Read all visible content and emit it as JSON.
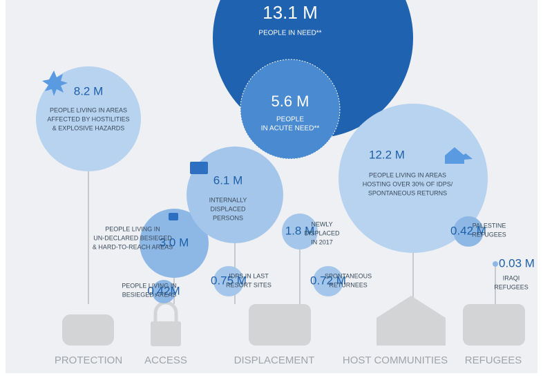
{
  "need": {
    "value": "13.1 M",
    "label": "PEOPLE IN NEED**"
  },
  "acute": {
    "value": "5.6 M",
    "lines": [
      "PEOPLE",
      "IN ACUTE NEED**"
    ]
  },
  "bubbles": [
    {
      "value": "8.2 M",
      "lines": [
        "PEOPLE LIVING IN AREAS",
        "AFFECTED BY HOSTILITIES",
        "& EXPLOSIVE HAZARDS"
      ]
    },
    {
      "value": "3.0 M",
      "lines": [
        "PEOPLE LIVING IN",
        "UN-DECLARED BESIEGED",
        "& HARD-TO-REACH AREAS"
      ]
    },
    {
      "value": "0.42M",
      "lines": [
        "PEOPLE LIVING IN",
        "BESIEGED AREAS"
      ]
    },
    {
      "value": "6.1 M",
      "lines": [
        "INTERNALLY",
        "DISPLACED",
        "PERSONS"
      ]
    },
    {
      "value": "0.75 M",
      "lines": [
        "IDPS IN LAST",
        "RESORT SITES"
      ]
    },
    {
      "value": "1.8 M",
      "lines": [
        "NEWLY",
        "DISPLACED",
        "IN 2017"
      ]
    },
    {
      "value": "0.72 M",
      "lines": [
        "SPONTANEOUS",
        "RETURNEES"
      ]
    },
    {
      "value": "12.2 M",
      "lines": [
        "PEOPLE LIVING IN AREAS",
        "HOSTING OVER 30% OF IDPS/",
        "SPONTANEOUS RETURNS"
      ]
    },
    {
      "value": "0.42 M",
      "lines": [
        "PALESTINE",
        "REFUGEES"
      ]
    },
    {
      "value": "0.03 M",
      "lines": [
        "IRAQI",
        "REFUGEES"
      ]
    }
  ],
  "sectors": [
    "PROTECTION",
    "ACCESS",
    "DISPLACEMENT",
    "HOST COMMUNITIES",
    "REFUGEES"
  ]
}
